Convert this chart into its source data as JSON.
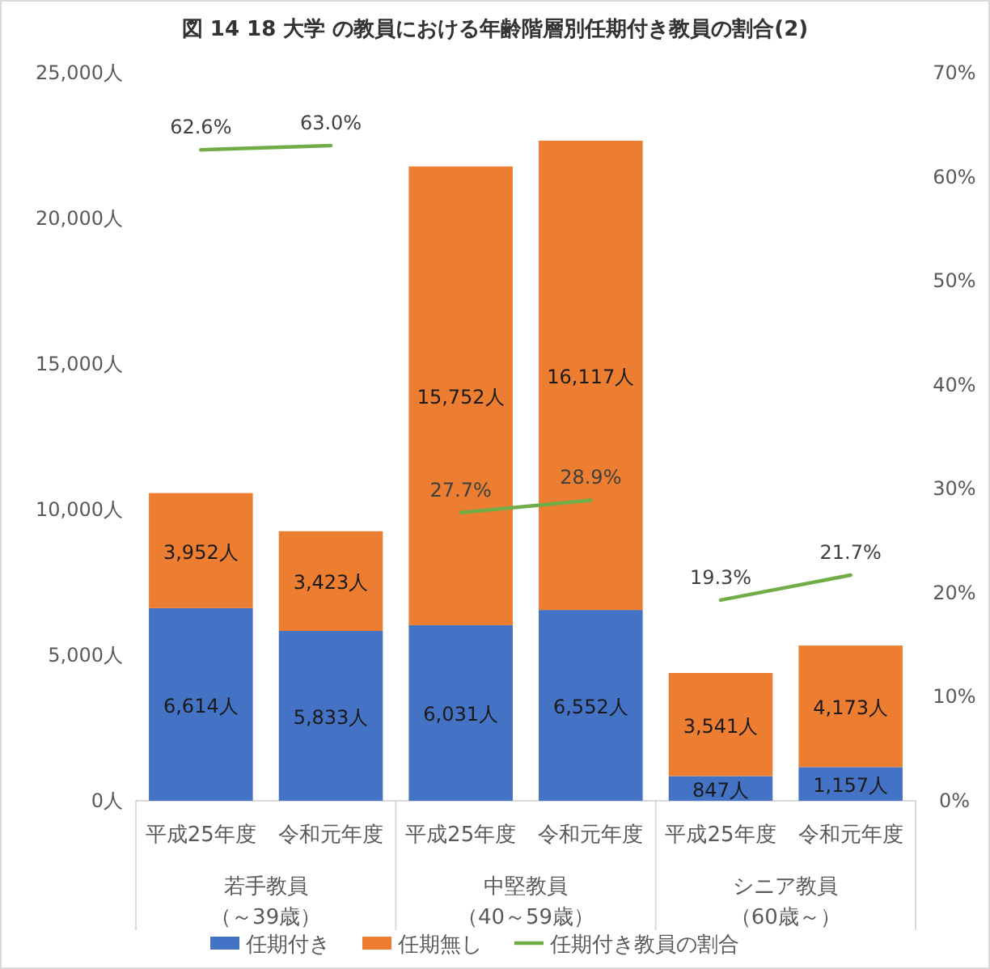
{
  "chart_data": {
    "type": "bar",
    "stacked": true,
    "title": "図 14  18 大学  の教員における年齢階層別任期付き教員の割合(2)",
    "categories": [
      "平成25年度",
      "令和元年度",
      "平成25年度",
      "令和元年度",
      "平成25年度",
      "令和元年度"
    ],
    "annotations": [
      "若手教員",
      "（～39歳）",
      "中堅教員",
      "（40～59歳）",
      "シニア教員",
      "（60歳～）"
    ],
    "series": [
      {
        "name": "任期付き",
        "color": "#4472c4",
        "values": [
          6614,
          5833,
          6031,
          6552,
          847,
          1157
        ],
        "value_labels": [
          "6,614人",
          "5,833人",
          "6,031人",
          "6,552人",
          "847人",
          "1,157人"
        ]
      },
      {
        "name": "任期無し",
        "color": "#ed7d31",
        "values": [
          3952,
          3423,
          15752,
          16117,
          3541,
          4173
        ],
        "value_labels": [
          "3,952人",
          "3,423人",
          "15,752人",
          "16,117人",
          "3,541人",
          "4,173人"
        ]
      },
      {
        "name": "任期付き教員の割合",
        "type": "line",
        "axis": "y2",
        "color": "#70ad47",
        "values": [
          62.6,
          63.0,
          null,
          null,
          null,
          null
        ],
        "value_labels": [
          "62.6%",
          "63.0%",
          null,
          null,
          null,
          null
        ]
      },
      {
        "type": "line",
        "axis": "y2",
        "color": "#70ad47",
        "values": [
          null,
          null,
          27.7,
          28.9,
          null,
          null
        ],
        "value_labels": [
          null,
          null,
          "27.7%",
          "28.9%",
          null,
          null
        ]
      },
      {
        "type": "line",
        "axis": "y2",
        "color": "#70ad47",
        "values": [
          null,
          null,
          null,
          null,
          19.3,
          21.7
        ],
        "value_labels": [
          null,
          null,
          null,
          null,
          "19.3%",
          "21.7%"
        ]
      }
    ],
    "ylim": [
      0,
      25000
    ],
    "yticks": [
      {
        "value": 0,
        "label": "0人"
      },
      {
        "value": 5000,
        "label": "5,000人"
      },
      {
        "value": 10000,
        "label": "10,000人"
      },
      {
        "value": 15000,
        "label": "15,000人"
      },
      {
        "value": 20000,
        "label": "20,000人"
      },
      {
        "value": 25000,
        "label": "25,000人"
      }
    ],
    "y2lim": [
      0,
      70
    ],
    "y2ticks": [
      {
        "value": 0,
        "label": "0%"
      },
      {
        "value": 10,
        "label": "10%"
      },
      {
        "value": 20,
        "label": "20%"
      },
      {
        "value": 30,
        "label": "30%"
      },
      {
        "value": 40,
        "label": "40%"
      },
      {
        "value": 50,
        "label": "50%"
      },
      {
        "value": 60,
        "label": "60%"
      },
      {
        "value": 70,
        "label": "70%"
      }
    ],
    "grid": false,
    "legend": "bottom"
  }
}
